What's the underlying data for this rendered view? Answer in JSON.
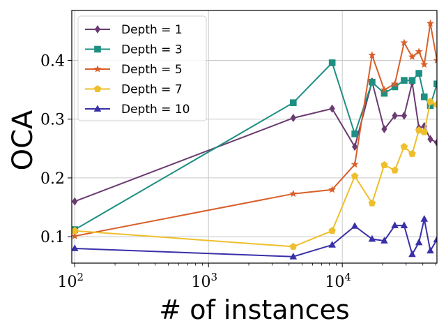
{
  "chart_data": {
    "type": "line",
    "xlabel": "# of instances",
    "ylabel": "OCA",
    "xscale": "log",
    "xlim": [
      95,
      51000
    ],
    "ylim": [
      0.055,
      0.485
    ],
    "yticks": [
      0.1,
      0.2,
      0.3,
      0.4
    ],
    "ytick_labels": [
      "0.1",
      "0.2",
      "0.3",
      "0.4"
    ],
    "xticks": [
      {
        "value": 100,
        "base": "10",
        "exp": "2"
      },
      {
        "value": 1000,
        "base": "10",
        "exp": "3"
      },
      {
        "value": 10000,
        "base": "10",
        "exp": "4"
      }
    ],
    "grid": true,
    "legend_position": "top-left",
    "series": [
      {
        "name": "Depth = 1",
        "color": "#6a3b70",
        "marker": "diamond",
        "points": [
          [
            100,
            0.16
          ],
          [
            4300,
            0.302
          ],
          [
            8400,
            0.318
          ],
          [
            12400,
            0.253
          ],
          [
            16700,
            0.364
          ],
          [
            20600,
            0.283
          ],
          [
            24700,
            0.306
          ],
          [
            29000,
            0.306
          ],
          [
            33300,
            0.362
          ],
          [
            37400,
            0.285
          ],
          [
            41000,
            0.288
          ],
          [
            45500,
            0.266
          ],
          [
            51000,
            0.26
          ]
        ]
      },
      {
        "name": "Depth = 3",
        "color": "#1e8f82",
        "marker": "square",
        "points": [
          [
            100,
            0.112
          ],
          [
            4300,
            0.328
          ],
          [
            8400,
            0.396
          ],
          [
            12400,
            0.275
          ],
          [
            16700,
            0.363
          ],
          [
            20600,
            0.344
          ],
          [
            24700,
            0.355
          ],
          [
            29000,
            0.366
          ],
          [
            33300,
            0.366
          ],
          [
            37400,
            0.378
          ],
          [
            41000,
            0.338
          ],
          [
            45500,
            0.323
          ],
          [
            51000,
            0.36
          ]
        ]
      },
      {
        "name": "Depth = 5",
        "color": "#d85f2a",
        "marker": "star",
        "points": [
          [
            100,
            0.101
          ],
          [
            4300,
            0.173
          ],
          [
            8400,
            0.18
          ],
          [
            12400,
            0.223
          ],
          [
            16700,
            0.409
          ],
          [
            20600,
            0.35
          ],
          [
            24700,
            0.36
          ],
          [
            29000,
            0.43
          ],
          [
            33300,
            0.406
          ],
          [
            37400,
            0.415
          ],
          [
            41000,
            0.393
          ],
          [
            45500,
            0.463
          ],
          [
            51000,
            0.4
          ]
        ]
      },
      {
        "name": "Depth = 7",
        "color": "#eebf2c",
        "marker": "pentagon",
        "points": [
          [
            100,
            0.11
          ],
          [
            4300,
            0.083
          ],
          [
            8400,
            0.11
          ],
          [
            12400,
            0.203
          ],
          [
            16700,
            0.157
          ],
          [
            20600,
            0.222
          ],
          [
            24700,
            0.213
          ],
          [
            29000,
            0.253
          ],
          [
            33300,
            0.241
          ],
          [
            37400,
            0.281
          ],
          [
            41000,
            0.278
          ],
          [
            45500,
            0.33
          ],
          [
            51000,
            0.325
          ]
        ]
      },
      {
        "name": "Depth = 10",
        "color": "#3a30a8",
        "marker": "triangle",
        "points": [
          [
            100,
            0.08
          ],
          [
            4300,
            0.066
          ],
          [
            8400,
            0.086
          ],
          [
            12400,
            0.118
          ],
          [
            16700,
            0.096
          ],
          [
            20600,
            0.093
          ],
          [
            24700,
            0.119
          ],
          [
            29000,
            0.119
          ],
          [
            33300,
            0.07
          ],
          [
            37400,
            0.09
          ],
          [
            41000,
            0.13
          ],
          [
            45500,
            0.076
          ],
          [
            51000,
            0.095
          ]
        ]
      }
    ]
  }
}
